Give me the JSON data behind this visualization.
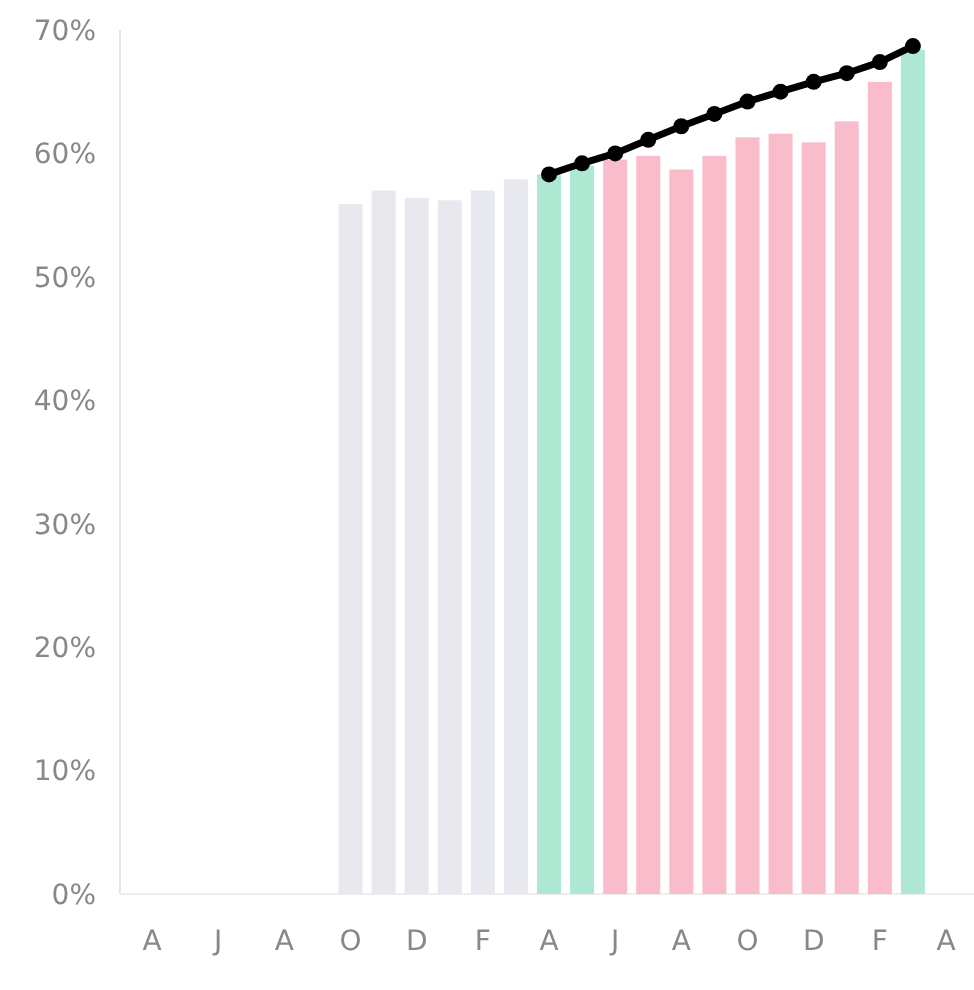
{
  "chart_data": {
    "type": "bar",
    "categories": [
      "A",
      null,
      "J",
      null,
      "A",
      null,
      "O",
      null,
      "D",
      null,
      "F",
      null,
      "A",
      null,
      "J",
      null,
      "A",
      null,
      "O",
      null,
      "D",
      null,
      "F",
      null,
      "A"
    ],
    "series": [
      {
        "values": [
          null,
          null,
          null,
          null,
          null,
          null,
          55.9,
          57.0,
          56.4,
          56.2,
          57.0,
          57.9,
          58.3,
          59.0,
          59.5,
          59.8,
          58.7,
          59.8,
          61.3,
          61.6,
          60.9,
          62.6,
          65.8,
          68.4,
          null
        ],
        "colors": [
          null,
          null,
          null,
          null,
          null,
          null,
          "#e8e9ef",
          "#e8e9ef",
          "#e8e9ef",
          "#e8e9ef",
          "#e8e9ef",
          "#e8e9ef",
          "#aee8d2",
          "#aee8d2",
          "#f9bccb",
          "#f9bccb",
          "#f9bccb",
          "#f9bccb",
          "#f9bccb",
          "#f9bccb",
          "#f9bccb",
          "#f9bccb",
          "#f9bccb",
          "#aee8d2",
          null
        ]
      },
      {
        "type": "line",
        "color": "#000000",
        "values": [
          null,
          null,
          null,
          null,
          null,
          null,
          null,
          null,
          null,
          null,
          null,
          null,
          58.3,
          59.2,
          60.0,
          61.1,
          62.2,
          63.2,
          64.2,
          65.0,
          65.8,
          66.5,
          67.4,
          68.7,
          null
        ]
      }
    ],
    "ylim": [
      0,
      70
    ],
    "yticks": [
      {
        "value": 0,
        "label": "0%"
      },
      {
        "value": 10,
        "label": "10%"
      },
      {
        "value": 20,
        "label": "20%"
      },
      {
        "value": 30,
        "label": "30%"
      },
      {
        "value": 40,
        "label": "40%"
      },
      {
        "value": 50,
        "label": "50%"
      },
      {
        "value": 60,
        "label": "60%"
      },
      {
        "value": 70,
        "label": "70%"
      }
    ],
    "marker": "circle",
    "line_style": "solid"
  }
}
